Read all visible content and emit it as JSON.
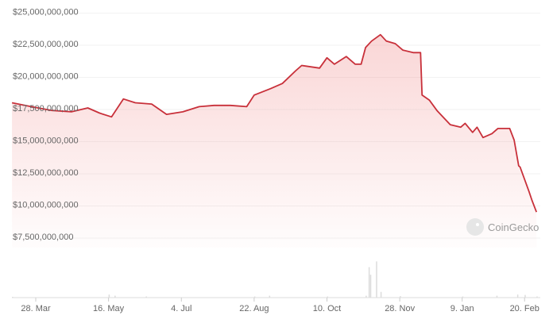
{
  "chart_data": {
    "type": "area",
    "title": "",
    "xlabel": "",
    "ylabel": "",
    "ylim": [
      7500000000,
      25000000000
    ],
    "y_ticks": [
      "$7,500,000,000",
      "$10,000,000,000",
      "$12,500,000,000",
      "$15,000,000,000",
      "$17,500,000,000",
      "$20,000,000,000",
      "$22,500,000,000",
      "$25,000,000,000"
    ],
    "y_tick_values": [
      7500000000,
      10000000000,
      12500000000,
      15000000000,
      17500000000,
      20000000000,
      22500000000,
      25000000000
    ],
    "x_ticks": [
      "28. Mar",
      "16. May",
      "4. Jul",
      "22. Aug",
      "10. Oct",
      "28. Nov",
      "9. Jan",
      "20. Feb"
    ],
    "grid": true,
    "line_color": "#c8303a",
    "fill_color": "#f4a6a6",
    "series": [
      {
        "x": [
          "12 Mar",
          "25 Mar",
          "8 Apr",
          "21 Apr",
          "2 May",
          "10 May",
          "18 May",
          "26 May",
          "3 Jun",
          "14 Jun",
          "24 Jun",
          "5 Jul",
          "16 Jul",
          "26 Jul",
          "6 Aug",
          "17 Aug",
          "22 Aug",
          "2 Sep",
          "10 Sep",
          "19 Sep",
          "23 Sep",
          "5 Oct",
          "10 Oct",
          "15 Oct",
          "23 Oct",
          "29 Oct",
          "2 Nov",
          "5 Nov",
          "9 Nov",
          "15 Nov",
          "19 Nov",
          "25 Nov",
          "30 Nov",
          "7 Dec",
          "12 Dec",
          "13 Dec",
          "18 Dec",
          "23 Dec",
          "1 Jan",
          "8 Jan",
          "11 Jan",
          "16 Jan",
          "19 Jan",
          "23 Jan",
          "29 Jan",
          "2 Feb",
          "10 Feb",
          "13 Feb",
          "16 Feb",
          "17 Feb",
          "23 Feb",
          "25 Feb",
          "28 Feb"
        ],
        "values": [
          17.9,
          17.6,
          17.3,
          17.2,
          17.5,
          17.1,
          16.8,
          18.2,
          17.9,
          17.8,
          17.0,
          17.2,
          17.6,
          17.7,
          17.7,
          17.6,
          18.5,
          19.0,
          19.4,
          20.4,
          20.8,
          20.6,
          21.4,
          20.9,
          21.5,
          20.9,
          20.9,
          22.2,
          22.7,
          23.2,
          22.7,
          22.5,
          22.0,
          21.8,
          21.8,
          18.5,
          18.1,
          17.3,
          16.2,
          16.0,
          16.3,
          15.6,
          16.0,
          15.2,
          15.5,
          15.9,
          15.9,
          15.0,
          13.0,
          12.9,
          11.0,
          10.3,
          9.4
        ],
        "value_unit": "billion USD"
      }
    ],
    "volume": {
      "x": [
        "12 Mar",
        "16 May",
        "20 May",
        "10 Jun",
        "22 Aug",
        "1 Sep",
        "10 Oct",
        "5 Nov",
        "7 Nov",
        "8 Nov",
        "12 Nov",
        "15 Nov",
        "28 Nov",
        "9 Jan",
        "1 Feb",
        "15 Feb",
        "20 Feb",
        "28 Feb"
      ],
      "values": [
        0.02,
        0.08,
        0.05,
        0.03,
        0.03,
        0.05,
        0.03,
        0.05,
        0.8,
        0.6,
        0.95,
        0.15,
        0.04,
        0.03,
        0.05,
        0.08,
        0.07,
        0.03
      ]
    }
  },
  "watermark": {
    "text": "CoinGecko",
    "icon": "gecko-logo-icon"
  }
}
